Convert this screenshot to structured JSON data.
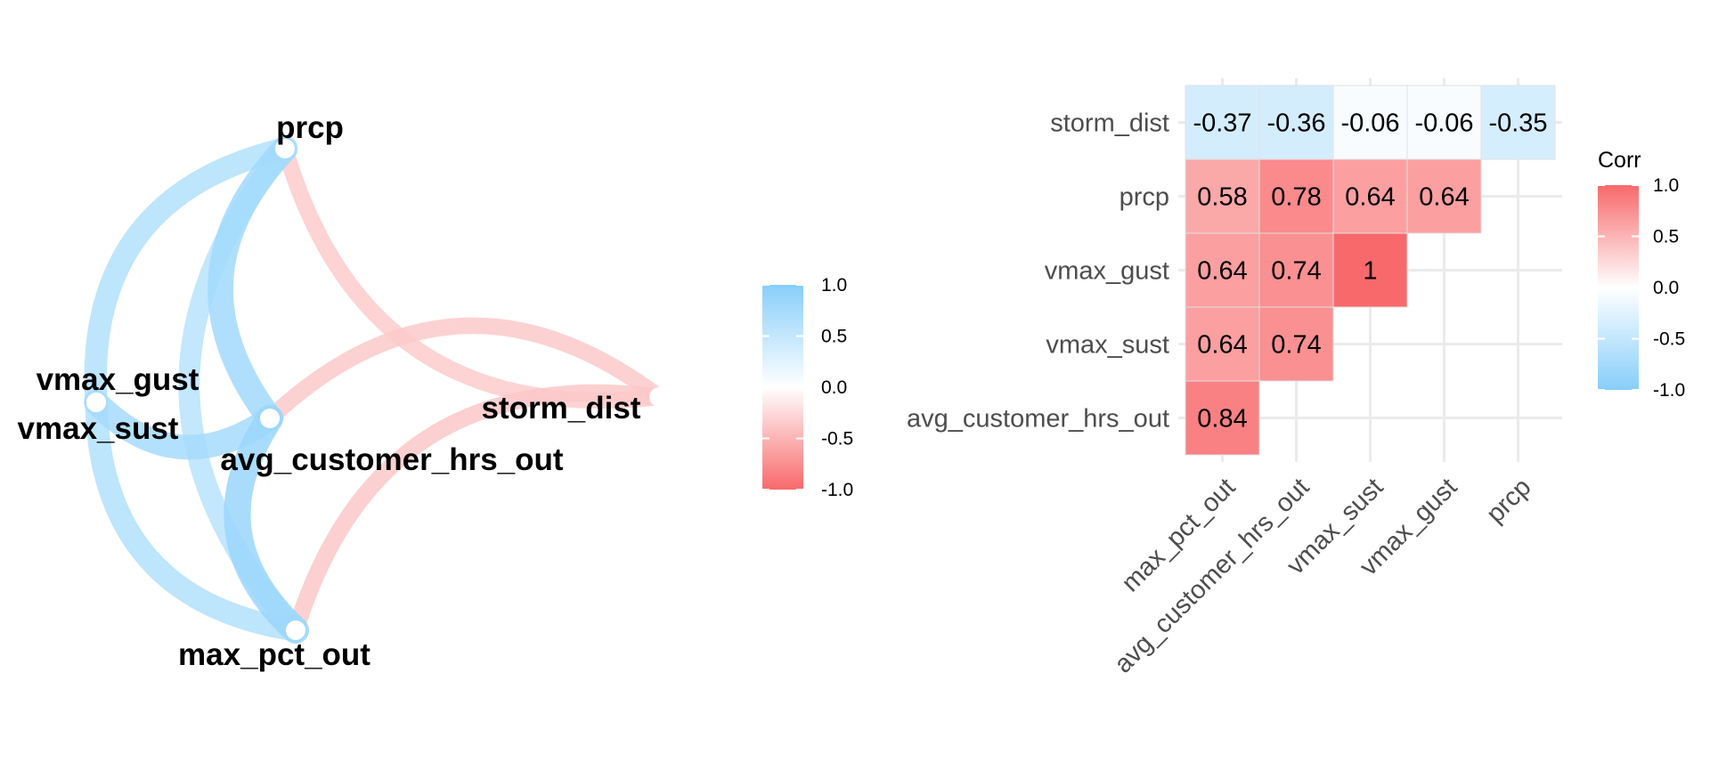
{
  "colors": {
    "positive": "#F8696B",
    "neutral": "#FFFFFF",
    "negative": "#87CEFA",
    "grid": "#EBEBEB",
    "tile_border": "#E0E0E0"
  },
  "chart_data": [
    {
      "type": "network",
      "nodes": [
        "prcp",
        "storm_dist",
        "vmax_gust",
        "vmax_sust",
        "avg_customer_hrs_out",
        "max_pct_out"
      ],
      "edges": [
        {
          "from": "prcp",
          "to": "storm_dist",
          "value": -0.35
        },
        {
          "from": "prcp",
          "to": "vmax_gust",
          "value": 0.64
        },
        {
          "from": "prcp",
          "to": "avg_customer_hrs_out",
          "value": 0.78
        },
        {
          "from": "prcp",
          "to": "max_pct_out",
          "value": 0.58
        },
        {
          "from": "vmax_gust",
          "to": "avg_customer_hrs_out",
          "value": 0.74
        },
        {
          "from": "vmax_sust",
          "to": "max_pct_out",
          "value": 0.64
        },
        {
          "from": "avg_customer_hrs_out",
          "to": "storm_dist",
          "value": -0.36
        },
        {
          "from": "avg_customer_hrs_out",
          "to": "max_pct_out",
          "value": 0.84
        },
        {
          "from": "max_pct_out",
          "to": "storm_dist",
          "value": -0.37
        }
      ],
      "legend": {
        "ticks": [
          "1.0",
          "0.5",
          "0.0",
          "-0.5",
          "-1.0"
        ],
        "colors": {
          "top": "#87CEFA",
          "middle": "#FFFFFF",
          "bottom": "#F8696B"
        }
      }
    },
    {
      "type": "heatmap",
      "x_categories": [
        "max_pct_out",
        "avg_customer_hrs_out",
        "vmax_sust",
        "vmax_gust",
        "prcp"
      ],
      "y_categories": [
        "storm_dist",
        "prcp",
        "vmax_gust",
        "vmax_sust",
        "avg_customer_hrs_out"
      ],
      "cells": [
        {
          "x": "max_pct_out",
          "y": "storm_dist",
          "value": -0.37,
          "label": "-0.37"
        },
        {
          "x": "avg_customer_hrs_out",
          "y": "storm_dist",
          "value": -0.36,
          "label": "-0.36"
        },
        {
          "x": "vmax_sust",
          "y": "storm_dist",
          "value": -0.06,
          "label": "-0.06"
        },
        {
          "x": "vmax_gust",
          "y": "storm_dist",
          "value": -0.06,
          "label": "-0.06"
        },
        {
          "x": "prcp",
          "y": "storm_dist",
          "value": -0.35,
          "label": "-0.35"
        },
        {
          "x": "max_pct_out",
          "y": "prcp",
          "value": 0.58,
          "label": "0.58"
        },
        {
          "x": "avg_customer_hrs_out",
          "y": "prcp",
          "value": 0.78,
          "label": "0.78"
        },
        {
          "x": "vmax_sust",
          "y": "prcp",
          "value": 0.64,
          "label": "0.64"
        },
        {
          "x": "vmax_gust",
          "y": "prcp",
          "value": 0.64,
          "label": "0.64"
        },
        {
          "x": "max_pct_out",
          "y": "vmax_gust",
          "value": 0.64,
          "label": "0.64"
        },
        {
          "x": "avg_customer_hrs_out",
          "y": "vmax_gust",
          "value": 0.74,
          "label": "0.74"
        },
        {
          "x": "vmax_sust",
          "y": "vmax_gust",
          "value": 1,
          "label": "1"
        },
        {
          "x": "max_pct_out",
          "y": "vmax_sust",
          "value": 0.64,
          "label": "0.64"
        },
        {
          "x": "avg_customer_hrs_out",
          "y": "vmax_sust",
          "value": 0.74,
          "label": "0.74"
        },
        {
          "x": "max_pct_out",
          "y": "avg_customer_hrs_out",
          "value": 0.84,
          "label": "0.84"
        }
      ],
      "legend": {
        "title": "Corr",
        "ticks": [
          "1.0",
          "0.5",
          "0.0",
          "-0.5",
          "-1.0"
        ],
        "colors": {
          "top": "#F8696B",
          "middle": "#FFFFFF",
          "bottom": "#87CEFA"
        }
      }
    }
  ]
}
